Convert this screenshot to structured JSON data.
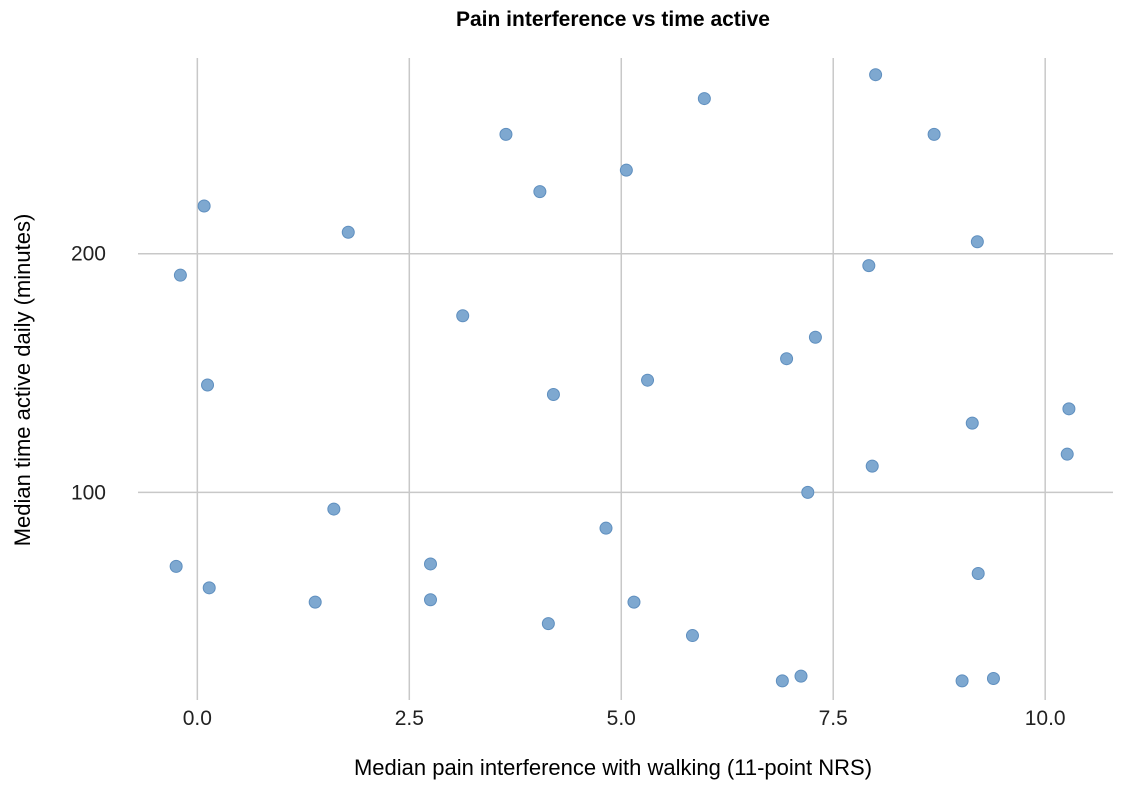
{
  "chart_data": {
    "type": "scatter",
    "title": "Pain interference vs time active",
    "xlabel": "Median pain interference with walking (11-point NRS)",
    "ylabel": "Median time active daily (minutes)",
    "xlim": [
      -0.7,
      10.8
    ],
    "ylim": [
      13,
      282
    ],
    "x_ticks": [
      0.0,
      2.5,
      5.0,
      7.5,
      10.0
    ],
    "x_tick_labels": [
      "0.0",
      "2.5",
      "5.0",
      "7.5",
      "10.0"
    ],
    "y_ticks": [
      100,
      200
    ],
    "y_tick_labels": [
      "100",
      "200"
    ],
    "grid": true,
    "color": "#7ea8d0",
    "points": [
      {
        "x": -0.25,
        "y": 69
      },
      {
        "x": 0.08,
        "y": 220
      },
      {
        "x": -0.2,
        "y": 191
      },
      {
        "x": 0.12,
        "y": 145
      },
      {
        "x": 0.14,
        "y": 60
      },
      {
        "x": 1.39,
        "y": 54
      },
      {
        "x": 1.61,
        "y": 93
      },
      {
        "x": 1.78,
        "y": 209
      },
      {
        "x": 2.75,
        "y": 70
      },
      {
        "x": 2.75,
        "y": 55
      },
      {
        "x": 3.13,
        "y": 174
      },
      {
        "x": 3.64,
        "y": 250
      },
      {
        "x": 4.04,
        "y": 226
      },
      {
        "x": 4.14,
        "y": 45
      },
      {
        "x": 4.2,
        "y": 141
      },
      {
        "x": 4.82,
        "y": 85
      },
      {
        "x": 5.06,
        "y": 235
      },
      {
        "x": 5.15,
        "y": 54
      },
      {
        "x": 5.31,
        "y": 147
      },
      {
        "x": 5.84,
        "y": 40
      },
      {
        "x": 5.98,
        "y": 265
      },
      {
        "x": 6.9,
        "y": 21
      },
      {
        "x": 6.95,
        "y": 156
      },
      {
        "x": 7.12,
        "y": 23
      },
      {
        "x": 7.2,
        "y": 100
      },
      {
        "x": 7.29,
        "y": 165
      },
      {
        "x": 7.92,
        "y": 195
      },
      {
        "x": 7.96,
        "y": 111
      },
      {
        "x": 8.0,
        "y": 275
      },
      {
        "x": 8.69,
        "y": 250
      },
      {
        "x": 9.02,
        "y": 21
      },
      {
        "x": 9.14,
        "y": 129
      },
      {
        "x": 9.2,
        "y": 205
      },
      {
        "x": 9.21,
        "y": 66
      },
      {
        "x": 9.39,
        "y": 22
      },
      {
        "x": 10.26,
        "y": 116
      },
      {
        "x": 10.28,
        "y": 135
      }
    ]
  }
}
